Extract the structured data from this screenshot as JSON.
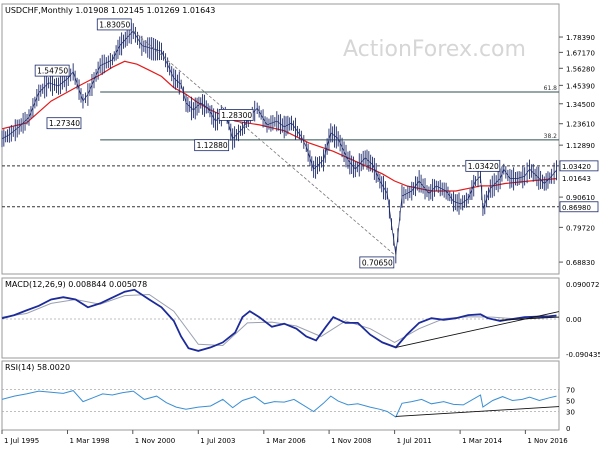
{
  "chart_data": [
    {
      "type": "line",
      "panel": "price",
      "title": "USDCHF,Monthly  1.01908 1.02145 1.01269 1.01643",
      "watermark": "ActionForex.com",
      "yscale": "log",
      "ylim": [
        0.66,
        2.0
      ],
      "yticks": [
        "1.78390",
        "1.67170",
        "1.56280",
        "1.45390",
        "1.34500",
        "1.23610",
        "1.12890",
        "0.90610",
        "0.79720",
        "0.68830"
      ],
      "ytick_values": [
        1.7839,
        1.6717,
        1.5628,
        1.4539,
        1.345,
        1.2361,
        1.1289,
        0.9061,
        0.7972,
        0.6883
      ],
      "current_price_label": "1.01643",
      "current_price": 1.01643,
      "xlim": [
        1995.5,
        2018.2
      ],
      "xticks": [
        "1 Jul 1995",
        "1 Mar 1998",
        "1 Nov 2000",
        "1 Jul 2003",
        "1 Mar 2006",
        "1 Nov 2008",
        "1 Jul 2011",
        "1 Mar 2014",
        "1 Nov 2016"
      ],
      "xtick_values": [
        1995.5,
        1998.17,
        2000.83,
        2003.5,
        2006.17,
        2008.83,
        2011.5,
        2014.17,
        2016.83
      ],
      "price_points": [
        [
          1995.5,
          1.16
        ],
        [
          1995.8,
          1.18
        ],
        [
          1996.2,
          1.22
        ],
        [
          1996.6,
          1.27
        ],
        [
          1997.0,
          1.41
        ],
        [
          1997.4,
          1.47
        ],
        [
          1997.8,
          1.45
        ],
        [
          1998.2,
          1.5
        ],
        [
          1998.4,
          1.54
        ],
        [
          1998.8,
          1.36
        ],
        [
          1999.0,
          1.4
        ],
        [
          1999.5,
          1.58
        ],
        [
          2000.0,
          1.62
        ],
        [
          2000.3,
          1.72
        ],
        [
          2000.6,
          1.78
        ],
        [
          2000.85,
          1.83
        ],
        [
          2001.2,
          1.72
        ],
        [
          2001.6,
          1.7
        ],
        [
          2002.0,
          1.68
        ],
        [
          2002.5,
          1.5
        ],
        [
          2002.8,
          1.46
        ],
        [
          2003.0,
          1.35
        ],
        [
          2003.3,
          1.31
        ],
        [
          2003.6,
          1.35
        ],
        [
          2003.9,
          1.32
        ],
        [
          2004.2,
          1.25
        ],
        [
          2004.6,
          1.3
        ],
        [
          2004.9,
          1.16
        ],
        [
          2005.3,
          1.21
        ],
        [
          2005.7,
          1.29
        ],
        [
          2005.9,
          1.32
        ],
        [
          2006.3,
          1.23
        ],
        [
          2006.7,
          1.25
        ],
        [
          2007.0,
          1.22
        ],
        [
          2007.3,
          1.24
        ],
        [
          2007.7,
          1.17
        ],
        [
          2007.9,
          1.12
        ],
        [
          2008.2,
          1.02
        ],
        [
          2008.6,
          1.06
        ],
        [
          2008.9,
          1.19
        ],
        [
          2009.2,
          1.16
        ],
        [
          2009.6,
          1.06
        ],
        [
          2009.9,
          1.02
        ],
        [
          2010.3,
          1.07
        ],
        [
          2010.6,
          1.04
        ],
        [
          2010.9,
          0.97
        ],
        [
          2011.2,
          0.92
        ],
        [
          2011.55,
          0.71
        ],
        [
          2011.8,
          0.91
        ],
        [
          2012.2,
          0.93
        ],
        [
          2012.5,
          0.97
        ],
        [
          2012.9,
          0.92
        ],
        [
          2013.2,
          0.95
        ],
        [
          2013.6,
          0.93
        ],
        [
          2013.9,
          0.89
        ],
        [
          2014.2,
          0.88
        ],
        [
          2014.5,
          0.9
        ],
        [
          2014.8,
          0.97
        ],
        [
          2015.0,
          0.99
        ],
        [
          2015.1,
          0.86
        ],
        [
          2015.4,
          0.94
        ],
        [
          2015.8,
          0.98
        ],
        [
          2015.95,
          1.02
        ],
        [
          2016.2,
          0.98
        ],
        [
          2016.5,
          0.98
        ],
        [
          2016.8,
          0.99
        ],
        [
          2017.0,
          1.02
        ],
        [
          2017.3,
          0.99
        ],
        [
          2017.6,
          0.96
        ],
        [
          2017.9,
          0.99
        ],
        [
          2018.1,
          1.016
        ]
      ],
      "moving_average": [
        [
          1995.5,
          1.21
        ],
        [
          1996.5,
          1.24
        ],
        [
          1997.5,
          1.36
        ],
        [
          1998.5,
          1.44
        ],
        [
          1999.5,
          1.52
        ],
        [
          2000.0,
          1.57
        ],
        [
          2000.5,
          1.61
        ],
        [
          2001.0,
          1.59
        ],
        [
          2001.5,
          1.55
        ],
        [
          2002.0,
          1.51
        ],
        [
          2002.5,
          1.44
        ],
        [
          2003.0,
          1.4
        ],
        [
          2003.5,
          1.35
        ],
        [
          2004.0,
          1.31
        ],
        [
          2004.5,
          1.28
        ],
        [
          2005.0,
          1.25
        ],
        [
          2006.0,
          1.23
        ],
        [
          2007.0,
          1.2
        ],
        [
          2008.0,
          1.14
        ],
        [
          2009.0,
          1.1
        ],
        [
          2010.0,
          1.05
        ],
        [
          2011.0,
          1.0
        ],
        [
          2011.5,
          0.97
        ],
        [
          2012.0,
          0.95
        ],
        [
          2013.0,
          0.93
        ],
        [
          2014.0,
          0.93
        ],
        [
          2014.5,
          0.94
        ],
        [
          2015.0,
          0.95
        ],
        [
          2015.5,
          0.95
        ],
        [
          2016.0,
          0.96
        ],
        [
          2017.0,
          0.97
        ],
        [
          2018.1,
          0.98
        ]
      ],
      "horizontal_levels": [
        {
          "value": 1.4134,
          "label": "61.8",
          "x_start": 1999.5
        },
        {
          "value": 1.1544,
          "label": "38.2",
          "x_start": 1999.5
        },
        {
          "value": 1.0342,
          "label": "",
          "dashed": true
        },
        {
          "value": 0.8698,
          "label": "",
          "dashed": true
        }
      ],
      "right_labels": [
        {
          "text": "1.03420",
          "value": 1.0342,
          "style": "box"
        },
        {
          "text": "1.01643",
          "value": 1.01643,
          "style": "plain"
        },
        {
          "text": "0.86980",
          "value": 0.8698,
          "style": "box"
        }
      ],
      "annotations": [
        {
          "text": "1.83050",
          "x": 2000.85,
          "y": 1.8305,
          "anchor": "above"
        },
        {
          "text": "1.54750",
          "x": 1998.4,
          "y": 1.5475,
          "anchor": "left"
        },
        {
          "text": "1.27340",
          "x": 1998.8,
          "y": 1.2734,
          "anchor": "below"
        },
        {
          "text": "1.28300",
          "x": 2005.9,
          "y": 1.283,
          "anchor": "left"
        },
        {
          "text": "1.12880",
          "x": 2004.9,
          "y": 1.1288,
          "anchor": "left"
        },
        {
          "text": "1.03420",
          "x": 2015.95,
          "y": 1.0342,
          "anchor": "left"
        },
        {
          "text": "0.70650",
          "x": 2011.55,
          "y": 0.7065,
          "anchor": "below"
        }
      ],
      "dashed_trendlines": [
        [
          [
            2000.85,
            1.8305
          ],
          [
            2011.55,
            0.7065
          ]
        ]
      ]
    },
    {
      "type": "line",
      "panel": "macd",
      "title": "MACD(12,26,9)  0.008844  0.005078",
      "ylim": [
        -0.095,
        0.095
      ],
      "yticks": [
        "0.090072",
        "0.00",
        "-0.090435"
      ],
      "ytick_values": [
        0.090072,
        0.0,
        -0.090435
      ],
      "macd_points": [
        [
          1995.5,
          0.002
        ],
        [
          1996.0,
          0.01
        ],
        [
          1996.5,
          0.022
        ],
        [
          1997.0,
          0.034
        ],
        [
          1997.5,
          0.05
        ],
        [
          1998.0,
          0.056
        ],
        [
          1998.5,
          0.05
        ],
        [
          1999.0,
          0.03
        ],
        [
          1999.5,
          0.04
        ],
        [
          2000.0,
          0.055
        ],
        [
          2000.5,
          0.07
        ],
        [
          2000.9,
          0.075
        ],
        [
          2001.5,
          0.05
        ],
        [
          2002.0,
          0.03
        ],
        [
          2002.5,
          -0.005
        ],
        [
          2002.8,
          -0.045
        ],
        [
          2003.1,
          -0.075
        ],
        [
          2003.5,
          -0.082
        ],
        [
          2004.0,
          -0.073
        ],
        [
          2004.5,
          -0.06
        ],
        [
          2005.0,
          -0.035
        ],
        [
          2005.3,
          0.005
        ],
        [
          2005.6,
          0.02
        ],
        [
          2006.0,
          0.004
        ],
        [
          2006.5,
          -0.02
        ],
        [
          2007.0,
          -0.012
        ],
        [
          2007.5,
          -0.025
        ],
        [
          2007.9,
          -0.045
        ],
        [
          2008.3,
          -0.055
        ],
        [
          2008.7,
          -0.02
        ],
        [
          2009.0,
          0.005
        ],
        [
          2009.5,
          -0.01
        ],
        [
          2010.0,
          -0.01
        ],
        [
          2010.5,
          -0.04
        ],
        [
          2011.0,
          -0.06
        ],
        [
          2011.55,
          -0.073
        ],
        [
          2012.0,
          -0.04
        ],
        [
          2012.5,
          -0.01
        ],
        [
          2013.0,
          0.002
        ],
        [
          2013.5,
          -0.002
        ],
        [
          2014.0,
          0.002
        ],
        [
          2014.5,
          0.01
        ],
        [
          2015.0,
          0.012
        ],
        [
          2015.3,
          0.002
        ],
        [
          2015.8,
          -0.005
        ],
        [
          2016.3,
          0.0
        ],
        [
          2016.8,
          0.005
        ],
        [
          2017.3,
          0.006
        ],
        [
          2017.8,
          0.007
        ],
        [
          2018.1,
          0.009
        ]
      ],
      "signal_points": [
        [
          1995.5,
          0.005
        ],
        [
          1996.5,
          0.014
        ],
        [
          1997.5,
          0.04
        ],
        [
          1998.5,
          0.05
        ],
        [
          1999.5,
          0.038
        ],
        [
          2000.5,
          0.06
        ],
        [
          2001.5,
          0.063
        ],
        [
          2002.5,
          0.02
        ],
        [
          2003.5,
          -0.065
        ],
        [
          2004.5,
          -0.068
        ],
        [
          2005.5,
          -0.01
        ],
        [
          2006.5,
          -0.008
        ],
        [
          2007.5,
          -0.018
        ],
        [
          2008.5,
          -0.045
        ],
        [
          2009.5,
          -0.005
        ],
        [
          2010.5,
          -0.025
        ],
        [
          2011.5,
          -0.06
        ],
        [
          2012.5,
          -0.025
        ],
        [
          2013.5,
          0.001
        ],
        [
          2014.5,
          0.006
        ],
        [
          2015.5,
          0.005
        ],
        [
          2016.5,
          0.0
        ],
        [
          2017.5,
          0.005
        ],
        [
          2018.1,
          0.006
        ]
      ],
      "trendlines": [
        [
          [
            2011.55,
            -0.073
          ],
          [
            2018.2,
            0.019
          ]
        ],
        [
          [
            2015.8,
            -0.003
          ],
          [
            2018.2,
            0.005
          ]
        ]
      ]
    },
    {
      "type": "line",
      "panel": "rsi",
      "title": "RSI(14)  58.0020",
      "ylim": [
        0,
        100
      ],
      "yticks": [
        "70",
        "50",
        "30",
        "0"
      ],
      "ytick_values": [
        70,
        50,
        30,
        0
      ],
      "rsi_points": [
        [
          1995.5,
          52
        ],
        [
          1996.0,
          58
        ],
        [
          1996.5,
          62
        ],
        [
          1997.0,
          67
        ],
        [
          1997.5,
          65
        ],
        [
          1998.0,
          63
        ],
        [
          1998.4,
          68
        ],
        [
          1998.8,
          48
        ],
        [
          1999.2,
          55
        ],
        [
          1999.6,
          62
        ],
        [
          2000.0,
          60
        ],
        [
          2000.4,
          64
        ],
        [
          2000.85,
          67
        ],
        [
          2001.3,
          52
        ],
        [
          2001.8,
          58
        ],
        [
          2002.2,
          46
        ],
        [
          2002.6,
          38
        ],
        [
          2003.0,
          34
        ],
        [
          2003.5,
          38
        ],
        [
          2004.0,
          40
        ],
        [
          2004.5,
          52
        ],
        [
          2004.9,
          37
        ],
        [
          2005.3,
          50
        ],
        [
          2005.8,
          57
        ],
        [
          2006.2,
          44
        ],
        [
          2006.6,
          48
        ],
        [
          2007.0,
          47
        ],
        [
          2007.4,
          52
        ],
        [
          2007.8,
          41
        ],
        [
          2008.2,
          30
        ],
        [
          2008.6,
          45
        ],
        [
          2008.9,
          58
        ],
        [
          2009.2,
          49
        ],
        [
          2009.6,
          42
        ],
        [
          2010.0,
          44
        ],
        [
          2010.5,
          38
        ],
        [
          2010.9,
          34
        ],
        [
          2011.2,
          30
        ],
        [
          2011.55,
          20
        ],
        [
          2011.8,
          45
        ],
        [
          2012.2,
          48
        ],
        [
          2012.6,
          52
        ],
        [
          2013.0,
          44
        ],
        [
          2013.5,
          48
        ],
        [
          2013.9,
          43
        ],
        [
          2014.3,
          42
        ],
        [
          2014.8,
          55
        ],
        [
          2015.0,
          60
        ],
        [
          2015.1,
          38
        ],
        [
          2015.5,
          50
        ],
        [
          2015.9,
          57
        ],
        [
          2016.3,
          50
        ],
        [
          2016.7,
          52
        ],
        [
          2017.0,
          56
        ],
        [
          2017.4,
          50
        ],
        [
          2017.8,
          55
        ],
        [
          2018.1,
          58
        ]
      ],
      "trendlines": [
        [
          [
            2011.55,
            21
          ],
          [
            2018.2,
            39
          ]
        ]
      ]
    }
  ]
}
